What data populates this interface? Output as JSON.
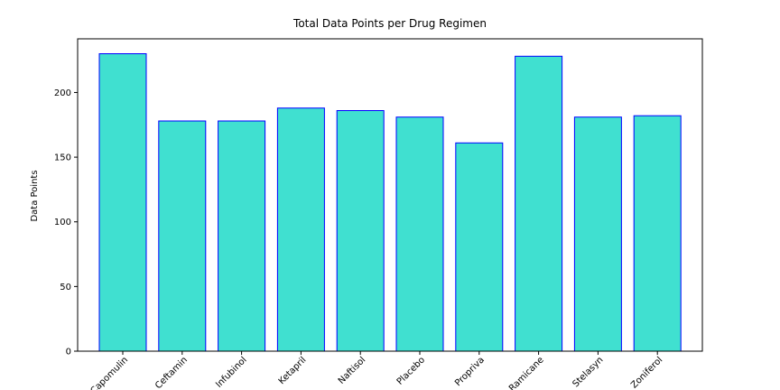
{
  "chart_data": {
    "type": "bar",
    "title": "Total Data Points per Drug Regimen",
    "xlabel": "",
    "ylabel": "Data Points",
    "categories": [
      "Capomulin",
      "Ceftamin",
      "Infubinol",
      "Ketapril",
      "Naftisol",
      "Placebo",
      "Propriva",
      "Ramicane",
      "Stelasyn",
      "Zoniferol"
    ],
    "values": [
      230,
      178,
      178,
      188,
      186,
      181,
      161,
      228,
      181,
      182
    ],
    "yticks": [
      0,
      50,
      100,
      150,
      200
    ],
    "ylim": [
      0,
      241.5
    ],
    "grid": false,
    "legend": "none",
    "bar_color": "#40e0d0",
    "bar_edge_color": "#0000ff"
  }
}
